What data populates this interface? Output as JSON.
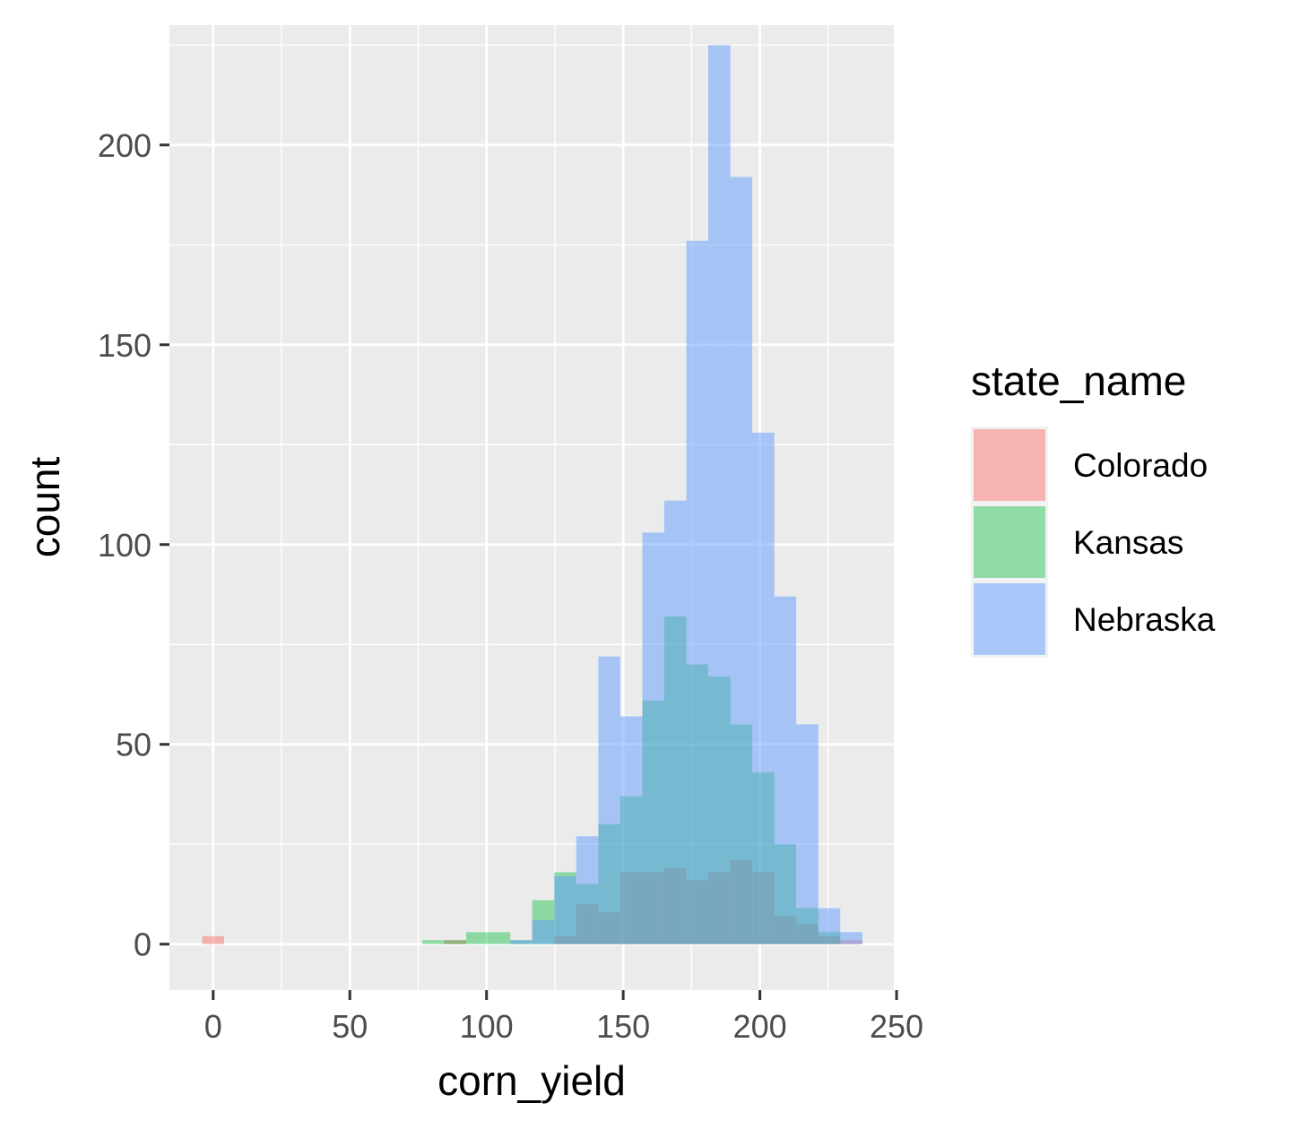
{
  "chart_data": {
    "type": "bar",
    "subtype": "histogram",
    "position": "identity",
    "xlabel": "corn_yield",
    "ylabel": "count",
    "xlim": [
      -16,
      249
    ],
    "ylim": [
      -11.5,
      230
    ],
    "x_ticks": [
      0,
      50,
      100,
      150,
      200,
      250
    ],
    "y_ticks": [
      0,
      50,
      100,
      150,
      200
    ],
    "grid": true,
    "bin_width": 8.05,
    "legend": {
      "title": "state_name",
      "placement": "right",
      "entries": [
        "Colorado",
        "Kansas",
        "Nebraska"
      ]
    },
    "series": [
      {
        "name": "Colorado",
        "color": "#F8766D",
        "opacity": 0.5,
        "bins": [
          {
            "x0": -4.0,
            "x1": 4.0,
            "count": 2
          },
          {
            "x0": 84.5,
            "x1": 92.6,
            "count": 1
          },
          {
            "x0": 124.8,
            "x1": 132.8,
            "count": 2
          },
          {
            "x0": 132.8,
            "x1": 140.9,
            "count": 10
          },
          {
            "x0": 140.9,
            "x1": 148.9,
            "count": 8
          },
          {
            "x0": 148.9,
            "x1": 157.0,
            "count": 18
          },
          {
            "x0": 157.0,
            "x1": 165.0,
            "count": 18
          },
          {
            "x0": 165.0,
            "x1": 173.1,
            "count": 19
          },
          {
            "x0": 173.1,
            "x1": 181.1,
            "count": 16
          },
          {
            "x0": 181.1,
            "x1": 189.2,
            "count": 18
          },
          {
            "x0": 189.2,
            "x1": 197.2,
            "count": 21
          },
          {
            "x0": 197.2,
            "x1": 205.3,
            "count": 18
          },
          {
            "x0": 205.3,
            "x1": 213.3,
            "count": 7
          },
          {
            "x0": 213.3,
            "x1": 221.4,
            "count": 5
          },
          {
            "x0": 221.4,
            "x1": 229.4,
            "count": 2
          },
          {
            "x0": 229.4,
            "x1": 237.5,
            "count": 1
          }
        ]
      },
      {
        "name": "Kansas",
        "color": "#00BA38",
        "opacity": 0.4,
        "bins": [
          {
            "x0": 76.5,
            "x1": 84.5,
            "count": 1
          },
          {
            "x0": 84.5,
            "x1": 92.6,
            "count": 1
          },
          {
            "x0": 92.6,
            "x1": 100.6,
            "count": 3
          },
          {
            "x0": 100.6,
            "x1": 108.7,
            "count": 3
          },
          {
            "x0": 108.7,
            "x1": 116.7,
            "count": 1
          },
          {
            "x0": 116.7,
            "x1": 124.8,
            "count": 11
          },
          {
            "x0": 124.8,
            "x1": 132.8,
            "count": 18
          },
          {
            "x0": 132.8,
            "x1": 140.9,
            "count": 15
          },
          {
            "x0": 140.9,
            "x1": 148.9,
            "count": 30
          },
          {
            "x0": 148.9,
            "x1": 157.0,
            "count": 37
          },
          {
            "x0": 157.0,
            "x1": 165.0,
            "count": 61
          },
          {
            "x0": 165.0,
            "x1": 173.1,
            "count": 82
          },
          {
            "x0": 173.1,
            "x1": 181.1,
            "count": 70
          },
          {
            "x0": 181.1,
            "x1": 189.2,
            "count": 67
          },
          {
            "x0": 189.2,
            "x1": 197.2,
            "count": 55
          },
          {
            "x0": 197.2,
            "x1": 205.3,
            "count": 43
          },
          {
            "x0": 205.3,
            "x1": 213.3,
            "count": 25
          },
          {
            "x0": 213.3,
            "x1": 221.4,
            "count": 9
          },
          {
            "x0": 221.4,
            "x1": 229.4,
            "count": 3
          }
        ]
      },
      {
        "name": "Nebraska",
        "color": "#619CFF",
        "opacity": 0.5,
        "bins": [
          {
            "x0": 108.7,
            "x1": 116.7,
            "count": 1
          },
          {
            "x0": 116.7,
            "x1": 124.8,
            "count": 6
          },
          {
            "x0": 124.8,
            "x1": 132.8,
            "count": 17
          },
          {
            "x0": 132.8,
            "x1": 140.9,
            "count": 27
          },
          {
            "x0": 140.9,
            "x1": 148.9,
            "count": 72
          },
          {
            "x0": 148.9,
            "x1": 157.0,
            "count": 57
          },
          {
            "x0": 157.0,
            "x1": 165.0,
            "count": 103
          },
          {
            "x0": 165.0,
            "x1": 173.1,
            "count": 111
          },
          {
            "x0": 173.1,
            "x1": 181.1,
            "count": 176
          },
          {
            "x0": 181.1,
            "x1": 189.2,
            "count": 225
          },
          {
            "x0": 189.2,
            "x1": 197.2,
            "count": 192
          },
          {
            "x0": 197.2,
            "x1": 205.3,
            "count": 128
          },
          {
            "x0": 205.3,
            "x1": 213.3,
            "count": 87
          },
          {
            "x0": 213.3,
            "x1": 221.4,
            "count": 55
          },
          {
            "x0": 221.4,
            "x1": 229.4,
            "count": 9
          },
          {
            "x0": 229.4,
            "x1": 237.5,
            "count": 3
          }
        ]
      }
    ]
  }
}
